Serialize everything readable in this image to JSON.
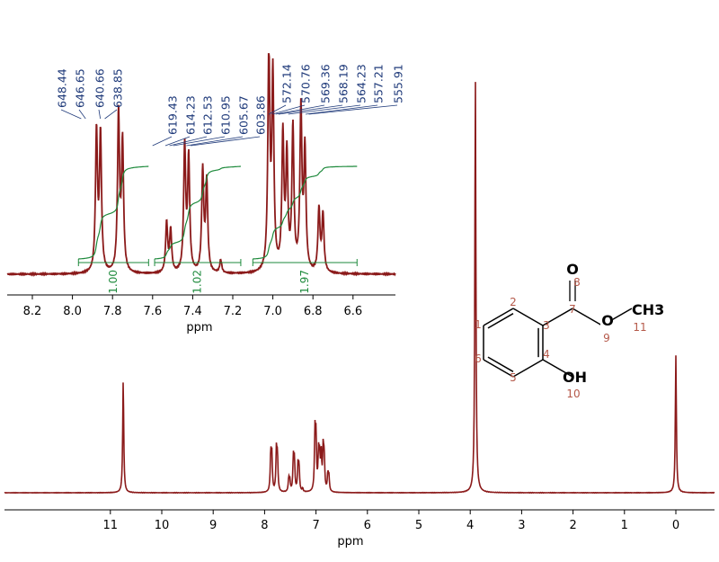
{
  "chart_data": [
    {
      "type": "line",
      "subtype": "1H NMR spectrum",
      "xlabel": "ppm",
      "xlim": [
        12.07,
        -0.75
      ],
      "x_reversed": true,
      "xticks": [
        11,
        10,
        9,
        8,
        7,
        6,
        5,
        4,
        3,
        2,
        1,
        0
      ],
      "grid": false,
      "line_color": "#8b1a1a",
      "peaks": [
        {
          "ppm": 10.75,
          "intensity": 27
        },
        {
          "ppm": 3.9,
          "intensity": 100
        },
        {
          "ppm": 0.0,
          "intensity": 33
        },
        {
          "ppm": 7.88,
          "intensity": 8.7
        },
        {
          "ppm": 7.86,
          "intensity": 8.5
        },
        {
          "ppm": 7.77,
          "intensity": 9.8
        },
        {
          "ppm": 7.75,
          "intensity": 8.0
        },
        {
          "ppm": 7.53,
          "intensity": 3.1
        },
        {
          "ppm": 7.51,
          "intensity": 2.6
        },
        {
          "ppm": 7.44,
          "intensity": 7.8
        },
        {
          "ppm": 7.42,
          "intensity": 7.0
        },
        {
          "ppm": 7.35,
          "intensity": 6.3
        },
        {
          "ppm": 7.33,
          "intensity": 5.6
        },
        {
          "ppm": 7.26,
          "intensity": 0.8
        },
        {
          "ppm": 7.02,
          "intensity": 13.6
        },
        {
          "ppm": 7.0,
          "intensity": 12.0
        },
        {
          "ppm": 6.95,
          "intensity": 8.4
        },
        {
          "ppm": 6.93,
          "intensity": 7.0
        },
        {
          "ppm": 6.9,
          "intensity": 8.9
        },
        {
          "ppm": 6.86,
          "intensity": 10.0
        },
        {
          "ppm": 6.84,
          "intensity": 7.5
        },
        {
          "ppm": 6.77,
          "intensity": 3.9
        },
        {
          "ppm": 6.75,
          "intensity": 3.6
        }
      ]
    },
    {
      "type": "line",
      "subtype": "inset expansion",
      "xlabel": "ppm",
      "xlim": [
        8.33,
        6.48
      ],
      "x_reversed": true,
      "xticks": [
        "8.2",
        "8.0",
        "7.8",
        "7.6",
        "7.4",
        "7.2",
        "7.0",
        "6.8",
        "6.6"
      ],
      "integral_color": "#1e8a3c",
      "label_color": "#1f3a7a",
      "integrals": [
        {
          "from": 7.97,
          "to": 7.62,
          "value": "1.00"
        },
        {
          "from": 7.59,
          "to": 7.16,
          "value": "1.02"
        },
        {
          "from": 7.1,
          "to": 6.58,
          "value": "1.97"
        }
      ],
      "peak_label_groups": [
        {
          "labels": [
            "648.44",
            "646.65",
            "640.66",
            "638.85"
          ]
        },
        {
          "labels": [
            "619.43",
            "614.23",
            "612.53",
            "610.95",
            "605.67",
            "603.86"
          ]
        },
        {
          "labels": [
            "572.14",
            "570.76",
            "569.36",
            "568.19",
            "564.23",
            "557.21",
            "555.91"
          ]
        }
      ]
    }
  ],
  "structure": {
    "name": "methyl salicylate",
    "atoms": {
      "O_carbonyl": "O",
      "O_ester": "O",
      "methyl": "CH3",
      "hydroxyl": "OH"
    },
    "numbers": [
      "1",
      "2",
      "3",
      "4",
      "5",
      "6",
      "7",
      "8",
      "9",
      "10",
      "11"
    ],
    "number_color": "#b5594a"
  }
}
